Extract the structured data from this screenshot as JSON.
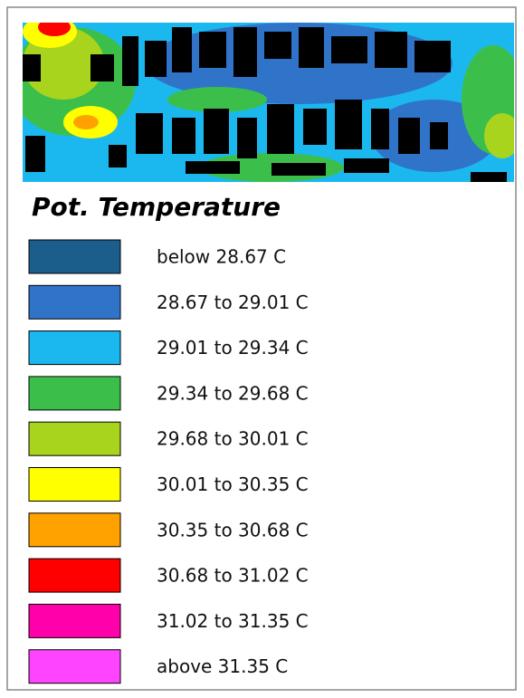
{
  "title": "Pot. Temperature",
  "legend": [
    {
      "label": "below 28.67 C",
      "color": "#1b5e8c"
    },
    {
      "label": "28.67 to 29.01 C",
      "color": "#2f74c8"
    },
    {
      "label": "29.01 to 29.34 C",
      "color": "#1bb8f0"
    },
    {
      "label": "29.34 to 29.68 C",
      "color": "#3cbf4a"
    },
    {
      "label": "29.68 to 30.01 C",
      "color": "#a8d41e"
    },
    {
      "label": "30.01 to 30.35 C",
      "color": "#ffff00"
    },
    {
      "label": "30.35 to 30.68 C",
      "color": "#ffa200"
    },
    {
      "label": "30.68 to 31.02 C",
      "color": "#ff0000"
    },
    {
      "label": "31.02 to 31.35 C",
      "color": "#ff00aa"
    },
    {
      "label": "above 31.35 C",
      "color": "#ff44ff"
    }
  ]
}
